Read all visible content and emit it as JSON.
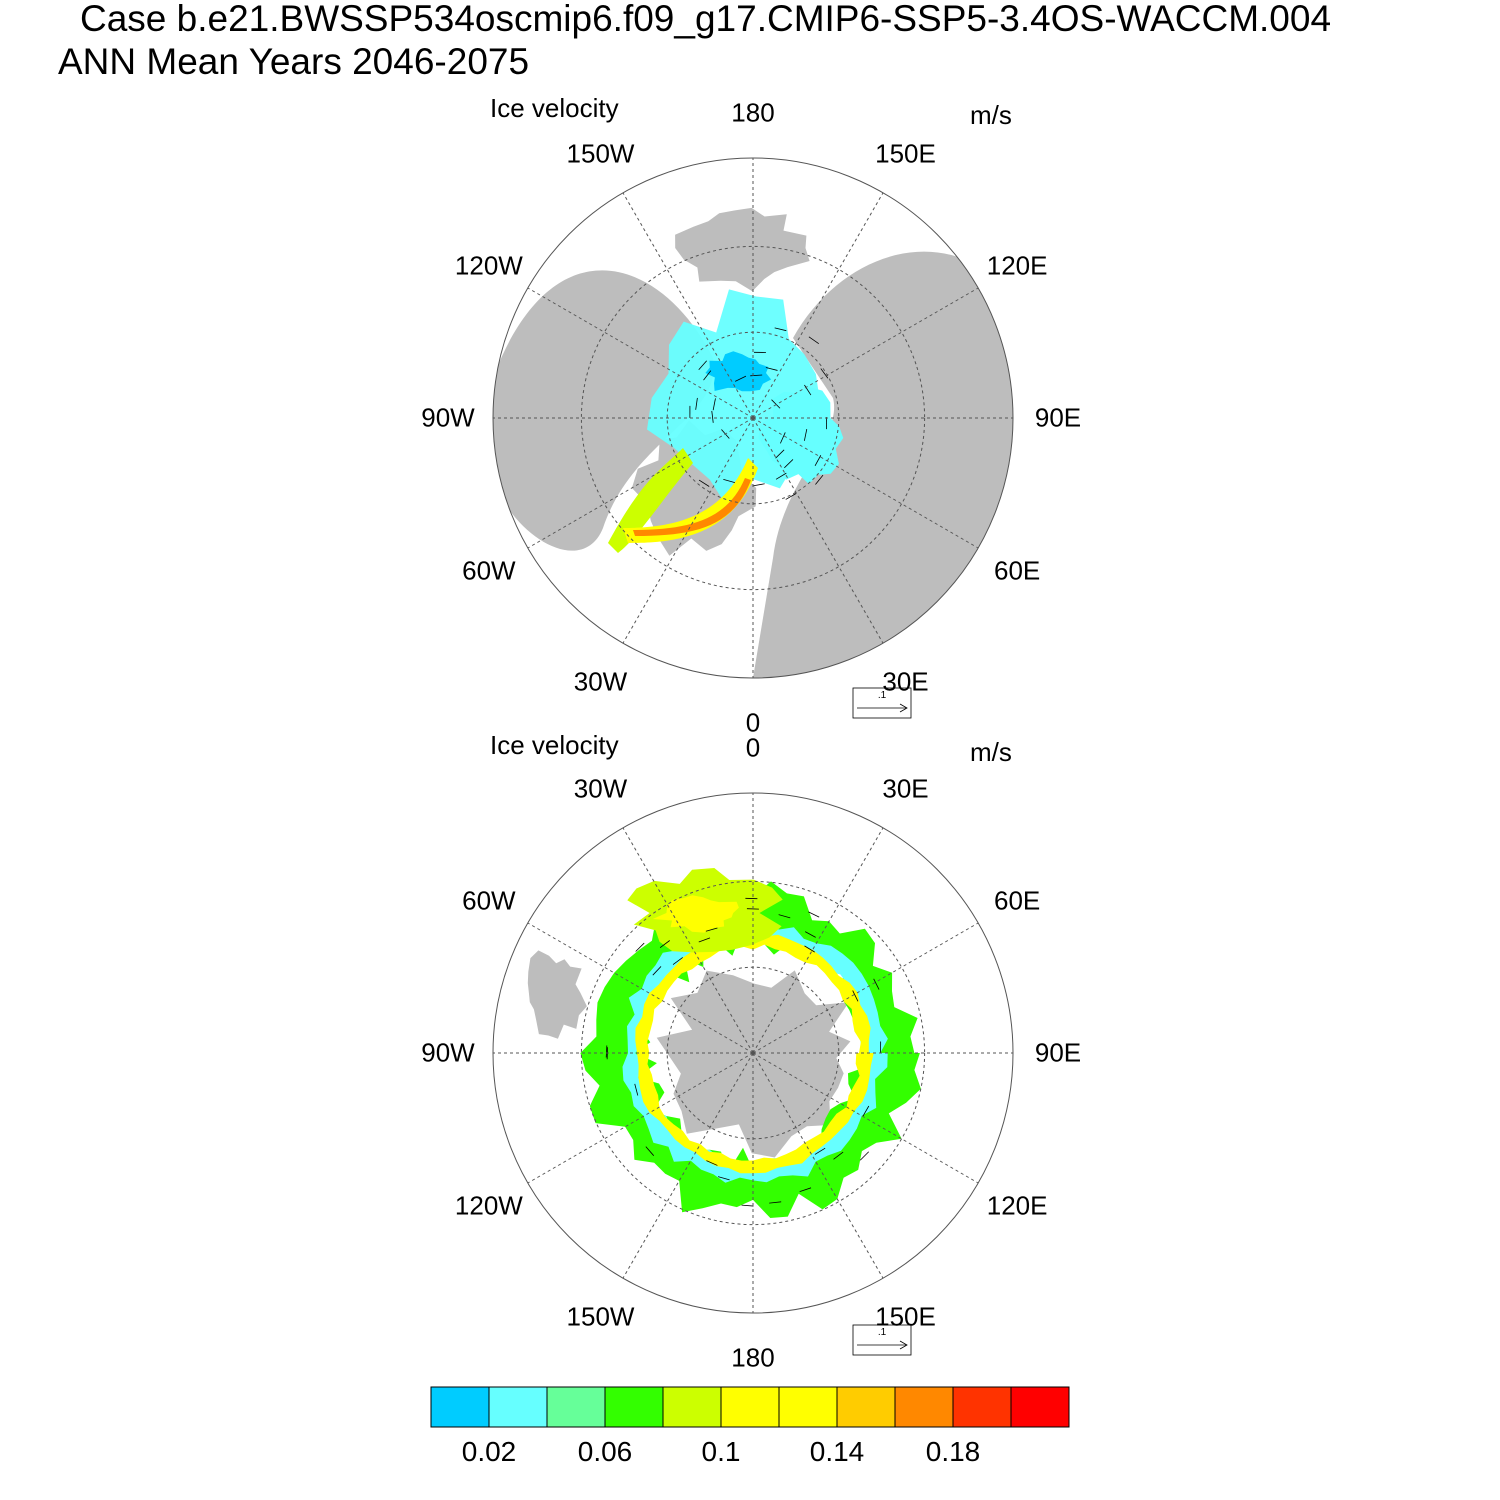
{
  "header": {
    "case_line": "Case b.e21.BWSSP534oscmip6.f09_g17.CMIP6-SSP5-3.4OS-WACCM.004",
    "period_line": "ANN Mean   Years 2046-2075"
  },
  "chart_data": [
    {
      "type": "polar_vector_contour",
      "hemisphere": "north",
      "title": "Ice velocity",
      "units": "m/s",
      "longitude_labels": [
        "180",
        "150E",
        "120E",
        "90E",
        "60E",
        "30E",
        "0",
        "30W",
        "60W",
        "90W",
        "120W",
        "150W"
      ],
      "reference_vector": ".1",
      "colors": {
        "land": "#bdbdbd",
        "ocean": "#ffffff",
        "grid": "#555555"
      }
    },
    {
      "type": "polar_vector_contour",
      "hemisphere": "south",
      "title": "Ice velocity",
      "units": "m/s",
      "longitude_labels": [
        "0",
        "30E",
        "60E",
        "90E",
        "120E",
        "150E",
        "180",
        "150W",
        "120W",
        "90W",
        "60W",
        "30W"
      ],
      "reference_vector": ".1",
      "colors": {
        "land": "#bdbdbd",
        "ocean": "#ffffff",
        "grid": "#555555"
      }
    }
  ],
  "colorbar": {
    "colors": [
      "#00ccff",
      "#66ffff",
      "#66ff99",
      "#33ff00",
      "#ccff00",
      "#ffff00",
      "#ffff00",
      "#ffcc00",
      "#ff8800",
      "#ff3300",
      "#ff0000"
    ],
    "labels": [
      "0.02",
      "0.06",
      "0.1",
      "0.14",
      "0.18"
    ]
  }
}
